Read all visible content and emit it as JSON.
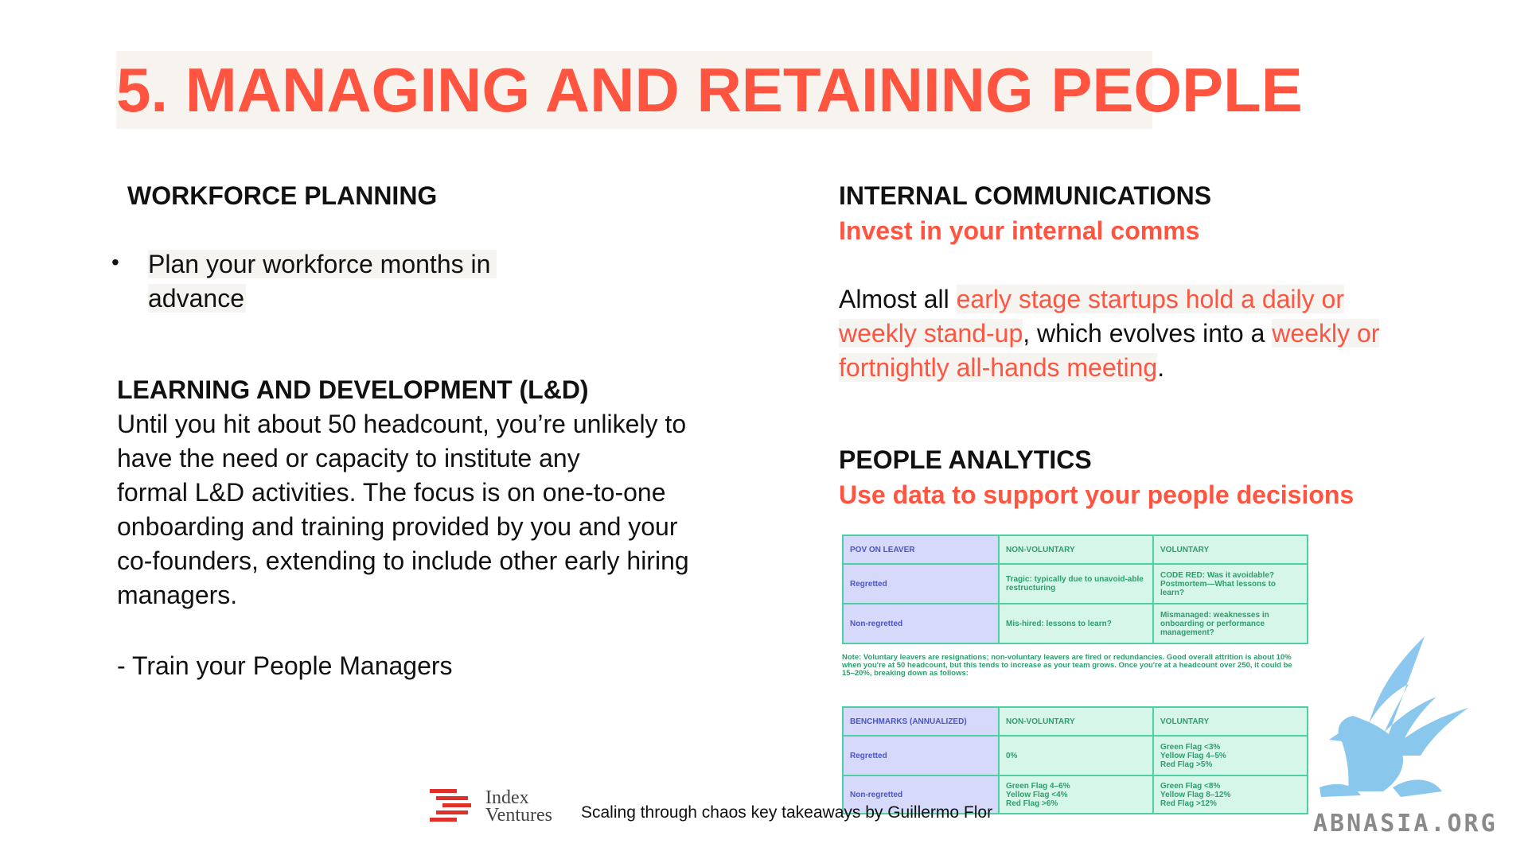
{
  "title": "5. MANAGING AND RETAINING PEOPLE",
  "workforce": {
    "heading": "WORKFORCE PLANNING",
    "bullet": "•",
    "line1": "Plan your workforce months in",
    "line2": "advance"
  },
  "ld": {
    "heading": "LEARNING AND DEVELOPMENT (L&D)",
    "lines": [
      "Until you hit about 50 headcount, you’re unlikely to",
      "have the need or capacity to institute any",
      "formal L&D activities. The focus is on one-to-one",
      "onboarding and training provided by you and your",
      "co-founders, extending to include other early hiring",
      "managers."
    ],
    "train": "- Train your People Managers"
  },
  "comms": {
    "heading": "INTERNAL COMMUNICATIONS",
    "subheading": "Invest in your internal comms",
    "p1": "Almost all ",
    "p2": "early stage startups hold a daily or",
    "p3": "weekly stand-up",
    "p4": ", which evolves into a ",
    "p5": "weekly or",
    "p6": "fortnightly all-hands meeting",
    "p7": "."
  },
  "analytics": {
    "heading": "PEOPLE ANALYTICS",
    "subheading": "Use data to support your people decisions"
  },
  "table1": {
    "headers": [
      "POV ON LEAVER",
      "NON-VOLUNTARY",
      "VOLUNTARY"
    ],
    "rows": [
      [
        "Regretted",
        "Tragic: typically due to unavoid-able restructuring",
        "CODE RED: Was it avoidable? Postmortem—What lessons to learn?"
      ],
      [
        "Non-regretted",
        "Mis-hired: lessons to learn?",
        "Mismanaged: weaknesses in onboarding or performance management?"
      ]
    ]
  },
  "note": "Note: Voluntary leavers are resignations; non-voluntary leavers are fired or redundancies. Good overall attrition is about 10% when you're at 50 headcount, but this tends to increase as your team grows. Once you're at a headcount over 250, it could be 15–20%, breaking down as follows:",
  "table2": {
    "headers": [
      "BENCHMARKS (ANNUALIZED)",
      "NON-VOLUNTARY",
      "VOLUNTARY"
    ],
    "rows": [
      {
        "label": "Regretted",
        "nonvol": [
          "0%"
        ],
        "vol": [
          "Green Flag   <3%",
          "Yellow Flag  4–5%",
          "Red Flag       >5%"
        ]
      },
      {
        "label": "Non-regretted",
        "nonvol": [
          "Green Flag   4–6%",
          "Yellow Flag  <4%",
          "Red Flag       >6%"
        ],
        "vol": [
          "Green Flag   <8%",
          "Yellow Flag  8–12%",
          "Red Flag       >12%"
        ]
      }
    ]
  },
  "footer": {
    "brand_line1": "Index",
    "brand_line2": "Ventures",
    "caption": "Scaling through chaos key takeaways by Guillermo Flor"
  },
  "watermark": "ABNASIA.ORG",
  "colors": {
    "accent": "#ff5440",
    "table_green": "#d7f6ea",
    "table_purple": "#d6d9fa",
    "watermark_blue": "#7ec1ec"
  }
}
